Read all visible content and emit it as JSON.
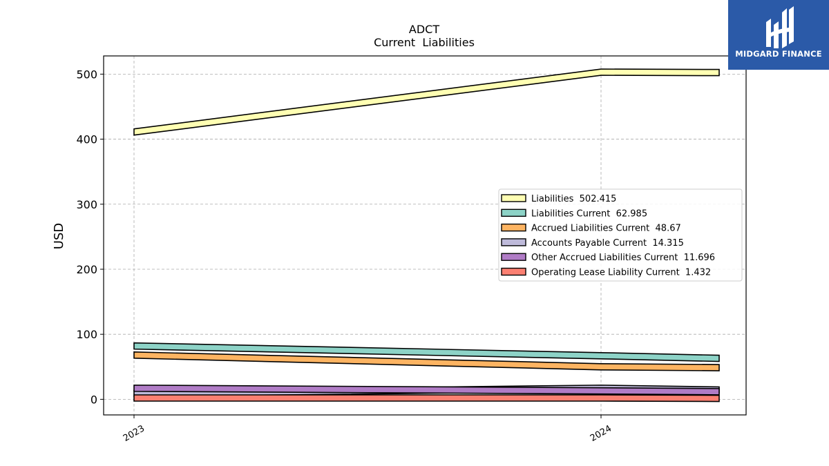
{
  "chart_data": {
    "type": "area",
    "title": "ADCT",
    "subtitle": "Current  Liabilities",
    "ylabel": "USD",
    "xlabel": "",
    "x_ticks": [
      "2023",
      "2024"
    ],
    "x": [
      "2023-01",
      "2024-01",
      "2024-04"
    ],
    "ylim": [
      -24,
      528
    ],
    "y_ticks": [
      0,
      100,
      200,
      300,
      400,
      500
    ],
    "grid": true,
    "legend_position": "center-right",
    "series": [
      {
        "name": "Liabilities",
        "legend": "Liabilities  502.415",
        "values": [
          411,
          503,
          502.415
        ],
        "color": "#ffffb3"
      },
      {
        "name": "Liabilities Current",
        "legend": "Liabilities Current  62.985",
        "values": [
          82,
          67,
          62.985
        ],
        "color": "#8dd3c7"
      },
      {
        "name": "Accrued Liabilities Current",
        "legend": "Accrued Liabilities Current  48.67",
        "values": [
          68,
          50,
          48.67
        ],
        "color": "#fdb462"
      },
      {
        "name": "Accounts Payable Current",
        "legend": "Accounts Payable Current  14.315",
        "values": [
          9,
          17,
          14.315
        ],
        "color": "#bebada"
      },
      {
        "name": "Other Accrued Liabilities Current",
        "legend": "Other Accrued Liabilities Current  11.696",
        "values": [
          17,
          13,
          11.696
        ],
        "color": "#b07cc6"
      },
      {
        "name": "Operating Lease Liability Current",
        "legend": "Operating Lease Liability Current  1.432",
        "values": [
          2,
          2,
          1.432
        ],
        "color": "#fb8072"
      }
    ]
  },
  "logo": {
    "text": "MIDGARD FINANCE"
  }
}
